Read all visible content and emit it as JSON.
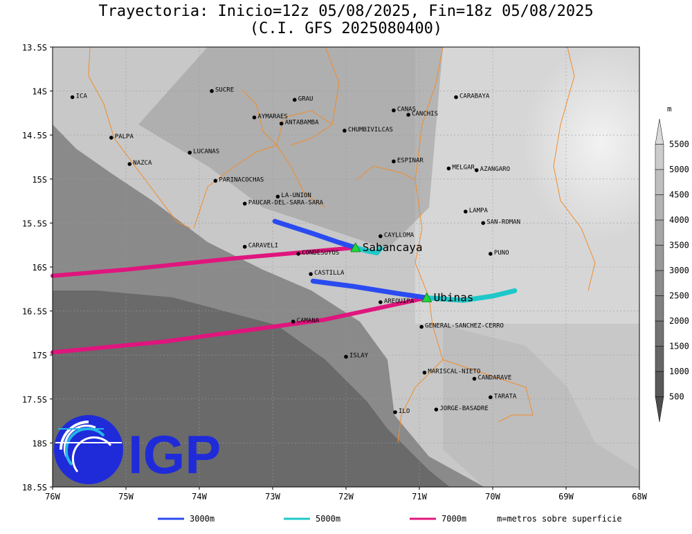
{
  "title_line1": "Trayectoria: Inicio=12z 05/08/2025, Fin=18z 05/08/2025",
  "title_line2": "(C.I. GFS 2025080400)",
  "lat_labels": [
    "13.5S",
    "14S",
    "14.5S",
    "15S",
    "15.5S",
    "16S",
    "16.5S",
    "17S",
    "17.5S",
    "18S",
    "18.5S"
  ],
  "lon_labels": [
    "76W",
    "75W",
    "74W",
    "73W",
    "72W",
    "71W",
    "70W",
    "69W",
    "68W"
  ],
  "colorbar": {
    "unit": "m",
    "levels": [
      "500",
      "1000",
      "1500",
      "2000",
      "2500",
      "3000",
      "3500",
      "4000",
      "4500",
      "5000",
      "5500"
    ],
    "colors": [
      "#d9d9d9",
      "#cccccc",
      "#bfbfbf",
      "#b3b3b3",
      "#a6a6a6",
      "#999999",
      "#8c8c8c",
      "#808080",
      "#737373",
      "#666666",
      "#595959",
      "#4d4d4d"
    ]
  },
  "legend": {
    "items": [
      {
        "label": "3000m",
        "color": "#2a4bf0"
      },
      {
        "label": "5000m",
        "color": "#1ec8c8"
      },
      {
        "label": "7000m",
        "color": "#e0157d"
      }
    ],
    "note": "m=metros sobre superficie"
  },
  "volcanoes": [
    {
      "name": "Sabancaya",
      "lon": -71.87,
      "lat": -15.78
    },
    {
      "name": "Ubinas",
      "lon": -70.9,
      "lat": -16.35
    }
  ],
  "places": [
    {
      "name": "ICA",
      "lon": -75.73,
      "lat": -14.07
    },
    {
      "name": "SUCRE",
      "lon": -73.83,
      "lat": -14.0
    },
    {
      "name": "GRAU",
      "lon": -72.7,
      "lat": -14.1
    },
    {
      "name": "CARABAYA",
      "lon": -70.5,
      "lat": -14.07
    },
    {
      "name": "AYMARAES",
      "lon": -73.25,
      "lat": -14.3
    },
    {
      "name": "ANTABAMBA",
      "lon": -72.88,
      "lat": -14.37
    },
    {
      "name": "CANAS",
      "lon": -71.35,
      "lat": -14.22
    },
    {
      "name": "CANCHIS",
      "lon": -71.15,
      "lat": -14.27
    },
    {
      "name": "CHUMBIVILCAS",
      "lon": -72.02,
      "lat": -14.45
    },
    {
      "name": "PALPA",
      "lon": -75.2,
      "lat": -14.53
    },
    {
      "name": "LUCANAS",
      "lon": -74.13,
      "lat": -14.7
    },
    {
      "name": "NAZCA",
      "lon": -74.95,
      "lat": -14.83
    },
    {
      "name": "ESPINAR",
      "lon": -71.35,
      "lat": -14.8
    },
    {
      "name": "MELGAR",
      "lon": -70.6,
      "lat": -14.88
    },
    {
      "name": "AZANGARO",
      "lon": -70.22,
      "lat": -14.9
    },
    {
      "name": "PARINACOCHAS",
      "lon": -73.78,
      "lat": -15.02
    },
    {
      "name": "LA-UNION",
      "lon": -72.93,
      "lat": -15.2
    },
    {
      "name": "PAUCAR-DEL-SARA-SARA",
      "lon": -73.38,
      "lat": -15.28
    },
    {
      "name": "LAMPA",
      "lon": -70.37,
      "lat": -15.37
    },
    {
      "name": "SAN-ROMAN",
      "lon": -70.13,
      "lat": -15.5
    },
    {
      "name": "CAYLLOMA",
      "lon": -71.53,
      "lat": -15.65
    },
    {
      "name": "CARAVELI",
      "lon": -73.38,
      "lat": -15.77
    },
    {
      "name": "CONDESUYOS",
      "lon": -72.65,
      "lat": -15.85
    },
    {
      "name": "PUNO",
      "lon": -70.03,
      "lat": -15.85
    },
    {
      "name": "CASTILLA",
      "lon": -72.48,
      "lat": -16.08
    },
    {
      "name": "AREQUIPA",
      "lon": -71.53,
      "lat": -16.4
    },
    {
      "name": "CAMANA",
      "lon": -72.72,
      "lat": -16.62
    },
    {
      "name": "GENERAL-SANCHEZ-CERRO",
      "lon": -70.97,
      "lat": -16.68
    },
    {
      "name": "ISLAY",
      "lon": -72.0,
      "lat": -17.02
    },
    {
      "name": "MARISCAL-NIETO",
      "lon": -70.93,
      "lat": -17.2
    },
    {
      "name": "CANDARAVE",
      "lon": -70.25,
      "lat": -17.27
    },
    {
      "name": "TARATA",
      "lon": -70.03,
      "lat": -17.48
    },
    {
      "name": "ILO",
      "lon": -71.33,
      "lat": -17.65
    },
    {
      "name": "JORGE-BASADRE",
      "lon": -70.77,
      "lat": -17.62
    }
  ],
  "trajectories": [
    {
      "source": "Sabancaya",
      "level": "3000m",
      "points": [
        [
          -71.87,
          -15.78
        ],
        [
          -72.1,
          -15.72
        ],
        [
          -72.45,
          -15.62
        ],
        [
          -72.97,
          -15.48
        ]
      ]
    },
    {
      "source": "Sabancaya",
      "level": "5000m",
      "points": [
        [
          -71.87,
          -15.78
        ],
        [
          -71.7,
          -15.82
        ],
        [
          -71.58,
          -15.84
        ],
        [
          -71.53,
          -15.79
        ]
      ]
    },
    {
      "source": "Sabancaya",
      "level": "7000m",
      "points": [
        [
          -71.87,
          -15.78
        ],
        [
          -73.5,
          -15.9
        ],
        [
          -75.0,
          -16.03
        ],
        [
          -76.0,
          -16.1
        ]
      ]
    },
    {
      "source": "Ubinas",
      "level": "3000m",
      "points": [
        [
          -70.9,
          -16.35
        ],
        [
          -71.3,
          -16.3
        ],
        [
          -71.9,
          -16.22
        ],
        [
          -72.45,
          -16.16
        ]
      ]
    },
    {
      "source": "Ubinas",
      "level": "5000m",
      "points": [
        [
          -70.9,
          -16.35
        ],
        [
          -70.4,
          -16.38
        ],
        [
          -70.0,
          -16.33
        ],
        [
          -69.7,
          -16.27
        ]
      ]
    },
    {
      "source": "Ubinas",
      "level": "7000m",
      "points": [
        [
          -70.9,
          -16.35
        ],
        [
          -72.3,
          -16.6
        ],
        [
          -74.5,
          -16.85
        ],
        [
          -76.0,
          -16.97
        ]
      ]
    }
  ],
  "logo_text": "IGP"
}
